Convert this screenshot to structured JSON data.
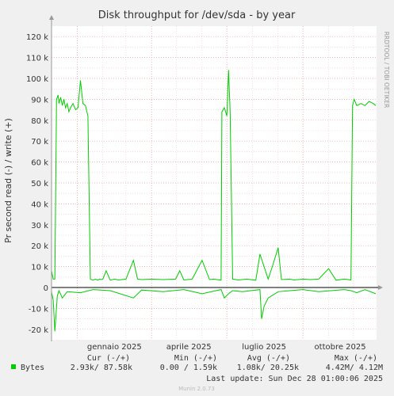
{
  "chart_data": {
    "type": "line",
    "title": "Disk throughput for /dev/sda - by year",
    "ylabel": "Pr second read (-) / write (+)",
    "side_label": "RRDTOOL / TOBI OETIKER",
    "ylim": [
      -25000,
      125000
    ],
    "y_ticks": [
      {
        "value": -20000,
        "label": "-20 k"
      },
      {
        "value": -10000,
        "label": "-10 k"
      },
      {
        "value": 0,
        "label": "0"
      },
      {
        "value": 10000,
        "label": "10 k"
      },
      {
        "value": 20000,
        "label": "20 k"
      },
      {
        "value": 30000,
        "label": "30 k"
      },
      {
        "value": 40000,
        "label": "40 k"
      },
      {
        "value": 50000,
        "label": "50 k"
      },
      {
        "value": 60000,
        "label": "60 k"
      },
      {
        "value": 70000,
        "label": "70 k"
      },
      {
        "value": 80000,
        "label": "80 k"
      },
      {
        "value": 90000,
        "label": "90 k"
      },
      {
        "value": 100000,
        "label": "100 k"
      },
      {
        "value": 110000,
        "label": "110 k"
      },
      {
        "value": 120000,
        "label": "120 k"
      }
    ],
    "x_ticks": [
      {
        "date": "2025-01-01",
        "label": "gennaio 2025"
      },
      {
        "date": "2025-04-01",
        "label": "aprile 2025"
      },
      {
        "date": "2025-07-01",
        "label": "luglio 2025"
      },
      {
        "date": "2025-10-01",
        "label": "ottobre 2025"
      }
    ],
    "xlim": [
      "2024-12-01",
      "2025-12-29"
    ],
    "grid": true,
    "series": [
      {
        "name": "Bytes",
        "color": "#00CC00",
        "write": {
          "x": [
            "2024-12-01",
            "2024-12-03",
            "2024-12-05",
            "2024-12-07",
            "2024-12-09",
            "2024-12-10",
            "2024-12-12",
            "2024-12-14",
            "2024-12-16",
            "2024-12-18",
            "2024-12-20",
            "2024-12-22",
            "2024-12-24",
            "2024-12-27",
            "2024-12-30",
            "2025-01-02",
            "2025-01-05",
            "2025-01-08",
            "2025-01-11",
            "2025-01-14",
            "2025-01-17",
            "2025-01-20",
            "2025-01-23",
            "2025-01-26",
            "2025-01-28",
            "2025-01-30",
            "2025-02-01",
            "2025-02-05",
            "2025-02-10",
            "2025-02-15",
            "2025-02-20",
            "2025-03-01",
            "2025-03-10",
            "2025-03-15",
            "2025-03-20",
            "2025-04-01",
            "2025-04-15",
            "2025-04-30",
            "2025-05-05",
            "2025-05-10",
            "2025-05-20",
            "2025-06-01",
            "2025-06-10",
            "2025-06-15",
            "2025-06-24",
            "2025-06-25",
            "2025-06-28",
            "2025-07-01",
            "2025-07-03",
            "2025-07-05",
            "2025-07-08",
            "2025-07-15",
            "2025-07-25",
            "2025-08-05",
            "2025-08-10",
            "2025-08-20",
            "2025-08-25",
            "2025-09-01",
            "2025-09-05",
            "2025-09-15",
            "2025-09-20",
            "2025-10-01",
            "2025-10-10",
            "2025-10-20",
            "2025-11-01",
            "2025-11-10",
            "2025-11-20",
            "2025-11-28",
            "2025-11-30",
            "2025-12-02",
            "2025-12-05",
            "2025-12-10",
            "2025-12-15",
            "2025-12-20",
            "2025-12-25",
            "2025-12-28"
          ],
          "y": [
            8000,
            4000,
            4000,
            90000,
            92000,
            88000,
            91000,
            87000,
            90000,
            86000,
            88000,
            84000,
            86000,
            88000,
            85000,
            86000,
            99000,
            88000,
            87000,
            82000,
            4000,
            3500,
            4000,
            3500,
            4000,
            3800,
            4000,
            8000,
            3500,
            4000,
            3600,
            4000,
            13000,
            4000,
            3800,
            4000,
            3800,
            4000,
            8000,
            3600,
            4000,
            13000,
            3800,
            4000,
            3500,
            84000,
            86000,
            82000,
            104000,
            84000,
            4000,
            3600,
            4000,
            3500,
            16000,
            4000,
            10000,
            19000,
            3800,
            4000,
            3600,
            4000,
            3800,
            4000,
            9000,
            3500,
            4000,
            3600,
            87000,
            90000,
            87000,
            88000,
            87000,
            89000,
            88000,
            87000
          ]
        },
        "read": {
          "x": [
            "2024-12-01",
            "2024-12-03",
            "2024-12-05",
            "2024-12-08",
            "2024-12-10",
            "2024-12-14",
            "2024-12-20",
            "2025-01-05",
            "2025-01-20",
            "2025-02-10",
            "2025-03-10",
            "2025-03-20",
            "2025-04-15",
            "2025-05-10",
            "2025-06-01",
            "2025-06-24",
            "2025-06-28",
            "2025-07-03",
            "2025-07-08",
            "2025-07-20",
            "2025-08-10",
            "2025-08-12",
            "2025-08-15",
            "2025-08-20",
            "2025-09-01",
            "2025-09-15",
            "2025-10-01",
            "2025-10-20",
            "2025-11-20",
            "2025-11-28",
            "2025-12-05",
            "2025-12-15",
            "2025-12-28"
          ],
          "y": [
            -2000,
            -6000,
            -21000,
            -4000,
            -1500,
            -5000,
            -2000,
            -2500,
            -1000,
            -1500,
            -5000,
            -1200,
            -2000,
            -1000,
            -3000,
            -1000,
            -5000,
            -3000,
            -1500,
            -2000,
            -1000,
            -15000,
            -9000,
            -5000,
            -2000,
            -1500,
            -1000,
            -2000,
            -1000,
            -1500,
            -2500,
            -1000,
            -3000
          ]
        }
      }
    ]
  },
  "legend": {
    "headers": {
      "cur": "Cur (-/+)",
      "min": "Min (-/+)",
      "avg": "Avg (-/+)",
      "max": "Max (-/+)"
    },
    "rows": [
      {
        "label": "Bytes",
        "color": "#00CC00",
        "cur": "2.93k/ 87.58k",
        "min": "0.00 /  1.59k",
        "avg": "1.08k/ 20.25k",
        "max": "4.42M/  4.12M"
      }
    ],
    "last_update": "Last update: Sun Dec 28 01:00:06 2025",
    "footer": "Munin 2.0.73"
  }
}
